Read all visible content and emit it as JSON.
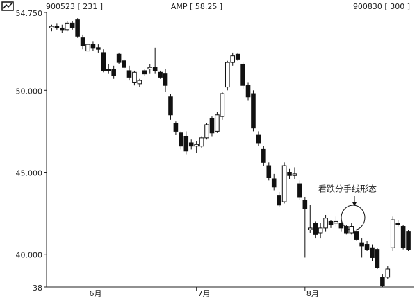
{
  "chart_data": {
    "type": "candlestick",
    "header_left": "900523 [ 231 ]",
    "title": "AMP [ 58.25 ]",
    "header_right": "900830 [ 300 ]",
    "annotation": "看跌分手线形态",
    "x": [
      231,
      232,
      233,
      234,
      235,
      236,
      237,
      238,
      239,
      240,
      241,
      242,
      243,
      244,
      245,
      246,
      247,
      248,
      249,
      250,
      251,
      252,
      253,
      254,
      255,
      256,
      257,
      258,
      259,
      260,
      261,
      262,
      263,
      264,
      265,
      266,
      267,
      268,
      269,
      270,
      271,
      272,
      273,
      274,
      275,
      276,
      277,
      278,
      279,
      280,
      281,
      282,
      283,
      284,
      285,
      286,
      287,
      288,
      289,
      290,
      291,
      292,
      293,
      294,
      295,
      296,
      297,
      298,
      299,
      300
    ],
    "open": [
      53.8,
      53.9,
      53.8,
      53.7,
      54.1,
      54.3,
      53.2,
      52.4,
      52.8,
      52.6,
      52.3,
      51.3,
      51.3,
      52.2,
      51.8,
      51.2,
      50.5,
      50.4,
      51.2,
      51.3,
      51.4,
      51.1,
      51.0,
      49.6,
      48.0,
      47.4,
      47.2,
      46.8,
      46.6,
      46.6,
      47.1,
      48.3,
      47.5,
      48.4,
      50.2,
      51.7,
      52.2,
      51.6,
      50.3,
      49.8,
      47.3,
      46.4,
      45.4,
      44.6,
      43.6,
      43.2,
      45.0,
      44.8,
      44.3,
      43.3,
      41.5,
      41.9,
      41.3,
      41.6,
      42.0,
      41.9,
      41.9,
      41.7,
      41.3,
      41.4,
      40.7,
      40.6,
      40.4,
      40.3,
      38.6,
      38.6,
      40.4,
      41.9,
      41.7,
      41.4
    ],
    "high": [
      54.0,
      54.1,
      54.0,
      54.2,
      54.2,
      54.4,
      53.4,
      53.0,
      53.0,
      52.8,
      52.5,
      51.6,
      51.5,
      52.3,
      51.9,
      51.5,
      51.2,
      50.7,
      51.3,
      51.6,
      52.6,
      51.2,
      51.3,
      49.8,
      48.1,
      47.5,
      47.5,
      47.0,
      46.9,
      47.2,
      48.0,
      48.4,
      48.7,
      49.9,
      51.8,
      52.3,
      52.3,
      51.7,
      50.5,
      50.0,
      47.5,
      46.6,
      45.6,
      44.9,
      43.8,
      45.6,
      45.2,
      45.3,
      44.5,
      43.5,
      43.0,
      42.0,
      41.9,
      42.4,
      42.1,
      42.3,
      42.0,
      41.8,
      41.9,
      41.5,
      41.0,
      40.8,
      40.6,
      40.4,
      38.8,
      39.3,
      42.3,
      42.1,
      41.8,
      41.5
    ],
    "low": [
      53.6,
      53.7,
      53.5,
      53.6,
      53.7,
      53.2,
      52.5,
      52.2,
      52.4,
      52.3,
      51.1,
      51.0,
      50.7,
      51.6,
      51.3,
      50.6,
      50.3,
      50.2,
      50.9,
      51.0,
      51.0,
      50.7,
      49.9,
      48.2,
      47.3,
      46.4,
      46.1,
      46.4,
      46.2,
      46.5,
      47.0,
      47.2,
      47.4,
      48.2,
      50.0,
      51.5,
      51.8,
      50.1,
      49.4,
      47.5,
      46.6,
      45.4,
      44.5,
      43.9,
      42.9,
      43.1,
      44.6,
      44.6,
      43.3,
      39.8,
      41.3,
      41.0,
      41.0,
      41.4,
      41.6,
      41.7,
      41.4,
      41.2,
      41.2,
      40.8,
      39.8,
      40.2,
      39.6,
      39.1,
      38.0,
      38.5,
      40.2,
      41.7,
      40.3,
      40.2
    ],
    "close": [
      53.9,
      53.8,
      53.7,
      54.1,
      53.8,
      53.3,
      52.7,
      52.8,
      52.6,
      52.5,
      51.2,
      51.2,
      50.9,
      51.7,
      51.4,
      50.8,
      51.1,
      50.6,
      51.0,
      51.4,
      51.2,
      50.8,
      50.3,
      48.5,
      47.5,
      46.6,
      46.3,
      46.6,
      46.7,
      47.1,
      47.9,
      47.4,
      48.5,
      49.8,
      51.7,
      52.1,
      51.9,
      50.3,
      49.6,
      47.7,
      46.8,
      45.6,
      44.7,
      44.1,
      43.0,
      45.4,
      44.8,
      44.9,
      43.5,
      42.8,
      41.6,
      41.2,
      41.6,
      42.2,
      41.8,
      42.0,
      41.6,
      41.3,
      41.7,
      40.9,
      40.5,
      40.3,
      39.8,
      39.2,
      38.1,
      39.1,
      42.1,
      41.8,
      40.4,
      40.3
    ],
    "up_color": "#ffffff",
    "down_color": "#111111",
    "xlim": [
      230,
      301
    ],
    "xticks": [
      {
        "value": 238,
        "label": "6月"
      },
      {
        "value": 259,
        "label": "7月"
      },
      {
        "value": 280,
        "label": "8月"
      }
    ],
    "ylim": [
      38,
      54.75
    ],
    "yticks": [
      {
        "value": 54.75,
        "label": "54.750"
      },
      {
        "value": 50,
        "label": "50.000"
      },
      {
        "value": 45,
        "label": "45.000"
      },
      {
        "value": 40,
        "label": "40.000"
      },
      38
    ]
  }
}
